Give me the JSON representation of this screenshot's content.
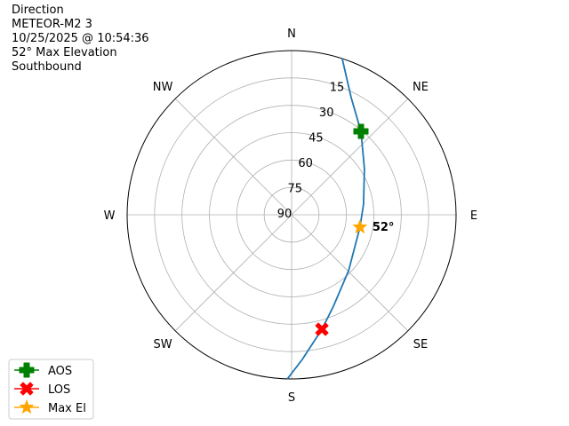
{
  "header": {
    "lines": [
      "Direction",
      "METEOR-M2 3",
      "10/25/2025 @ 10:54:36",
      "52° Max Elevation",
      "Southbound"
    ]
  },
  "chart_data": {
    "type": "polar-line",
    "direction_labels": [
      {
        "label": "N",
        "az": 0
      },
      {
        "label": "NE",
        "az": 45
      },
      {
        "label": "E",
        "az": 90
      },
      {
        "label": "SE",
        "az": 135
      },
      {
        "label": "S",
        "az": 180
      },
      {
        "label": "SW",
        "az": 225
      },
      {
        "label": "W",
        "az": 270
      },
      {
        "label": "NW",
        "az": 315
      }
    ],
    "radial_axis": "elevation (center 90°, edge 0°)",
    "radial_ticks": [
      90,
      75,
      60,
      45,
      30,
      15
    ],
    "grid": true,
    "track": {
      "color": "#1f77b4",
      "points": [
        {
          "az": 17.9,
          "el": 0
        },
        {
          "az": 26.9,
          "el": 18
        },
        {
          "az": 39.7,
          "el": 30.6
        },
        {
          "az": 57.6,
          "el": 42.8
        },
        {
          "az": 81.6,
          "el": 50.2
        },
        {
          "az": 100.3,
          "el": 52
        },
        {
          "az": 134.5,
          "el": 46.3
        },
        {
          "az": 155.5,
          "el": 34.9
        },
        {
          "az": 165.2,
          "el": 25.1
        },
        {
          "az": 175.8,
          "el": 10.5
        },
        {
          "az": 181.5,
          "el": 0
        }
      ]
    },
    "markers": [
      {
        "name": "AOS",
        "az": 39.7,
        "el": 30.6,
        "color": "#008000",
        "shape": "plus"
      },
      {
        "name": "LOS",
        "az": 165.2,
        "el": 25.1,
        "color": "#ff0000",
        "shape": "x"
      },
      {
        "name": "Max El",
        "az": 100.3,
        "el": 52,
        "color": "#ffa500",
        "shape": "star"
      }
    ],
    "annotation": "52°",
    "legend_placement": "lower-left"
  }
}
